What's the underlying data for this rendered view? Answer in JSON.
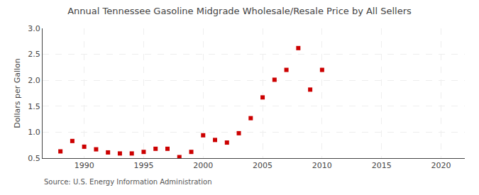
{
  "chart_data": {
    "type": "scatter",
    "title": "Annual Tennessee Gasoline Midgrade Wholesale/Resale Price by All Sellers",
    "y_label": "Dollars per Gallon",
    "annotations": [
      "Source: U.S. Energy Information Administration"
    ],
    "x": [
      1988,
      1989,
      1990,
      1991,
      1992,
      1993,
      1994,
      1995,
      1996,
      1997,
      1998,
      1999,
      2000,
      2001,
      2002,
      2003,
      2004,
      2005,
      2006,
      2007,
      2008,
      2009,
      2010
    ],
    "values": [
      0.63,
      0.83,
      0.72,
      0.67,
      0.61,
      0.59,
      0.59,
      0.62,
      0.68,
      0.68,
      0.52,
      0.62,
      0.94,
      0.85,
      0.8,
      0.98,
      1.27,
      1.67,
      2.01,
      2.2,
      2.62,
      1.82,
      2.2
    ],
    "color": "#cc0000",
    "marker": "square",
    "xlim": [
      1986.5,
      2022
    ],
    "ylim": [
      0.5,
      3.0
    ],
    "xticks": [
      1990,
      1995,
      2000,
      2005,
      2010,
      2015,
      2020
    ],
    "yticks": [
      0.5,
      {
        "value": 1.0,
        "label": "1.0"
      },
      1.5,
      {
        "value": 2.0,
        "label": "2.0"
      },
      2.5,
      {
        "value": 3.0,
        "label": "3.0"
      }
    ],
    "grid": true
  }
}
